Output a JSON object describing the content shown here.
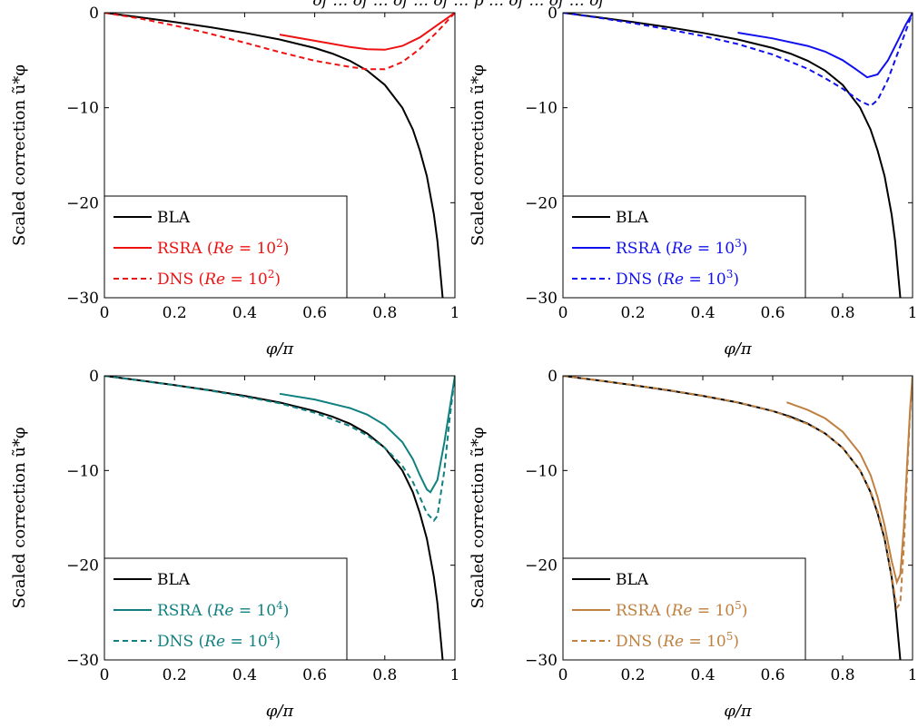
{
  "figure": {
    "caption_fragment": "of … of … of … of … p … of … of … of"
  },
  "chart_data": [
    {
      "type": "line",
      "xlabel": "φ/π",
      "ylabel": "Scaled correction ũ*φ",
      "xlim": [
        0,
        1
      ],
      "ylim": [
        -30,
        0
      ],
      "xticks": [
        "0",
        "0.2",
        "0.4",
        "0.6",
        "0.8",
        "1"
      ],
      "yticks": [
        "0",
        "−10",
        "−20",
        "−30"
      ],
      "grid": false,
      "legend_position": "bottom-left",
      "series": [
        {
          "name": "BLA",
          "color": "#000000",
          "dash": "solid",
          "x": [
            0,
            0.1,
            0.2,
            0.3,
            0.4,
            0.5,
            0.6,
            0.65,
            0.7,
            0.75,
            0.8,
            0.85,
            0.88,
            0.9,
            0.92,
            0.94,
            0.95,
            0.96,
            0.965
          ],
          "y": [
            0,
            -0.48,
            -0.98,
            -1.52,
            -2.12,
            -2.82,
            -3.72,
            -4.3,
            -5.05,
            -6.1,
            -7.6,
            -10.0,
            -12.3,
            -14.5,
            -17.2,
            -21.2,
            -24.0,
            -28.0,
            -30.0
          ]
        },
        {
          "name": "RSRA (Re = 10²)",
          "label": "RSRA",
          "re_exp": "2",
          "color": "#ee1111",
          "dash": "solid",
          "x": [
            0.5,
            0.6,
            0.7,
            0.75,
            0.8,
            0.85,
            0.9,
            0.95,
            1.0
          ],
          "y": [
            -2.3,
            -2.95,
            -3.6,
            -3.85,
            -3.9,
            -3.5,
            -2.6,
            -1.3,
            0
          ]
        },
        {
          "name": "DNS (Re = 10²)",
          "label": "DNS",
          "re_exp": "2",
          "color": "#ee1111",
          "dash": "dashed",
          "x": [
            0,
            0.1,
            0.2,
            0.3,
            0.4,
            0.5,
            0.6,
            0.7,
            0.75,
            0.8,
            0.85,
            0.9,
            0.95,
            1.0
          ],
          "y": [
            0,
            -0.6,
            -1.35,
            -2.2,
            -3.15,
            -4.15,
            -5.05,
            -5.7,
            -5.95,
            -5.95,
            -5.2,
            -3.8,
            -2.0,
            0
          ]
        }
      ]
    },
    {
      "type": "line",
      "xlabel": "φ/π",
      "ylabel": "Scaled correction ũ*φ",
      "xlim": [
        0,
        1
      ],
      "ylim": [
        -30,
        0
      ],
      "xticks": [
        "0",
        "0.2",
        "0.4",
        "0.6",
        "0.8",
        "1"
      ],
      "yticks": [
        "0",
        "−10",
        "−20",
        "−30"
      ],
      "grid": false,
      "legend_position": "bottom-left",
      "series": [
        {
          "name": "BLA",
          "color": "#000000",
          "dash": "solid",
          "x": [
            0,
            0.1,
            0.2,
            0.3,
            0.4,
            0.5,
            0.6,
            0.65,
            0.7,
            0.75,
            0.8,
            0.85,
            0.88,
            0.9,
            0.92,
            0.94,
            0.95,
            0.96,
            0.965
          ],
          "y": [
            0,
            -0.48,
            -0.98,
            -1.52,
            -2.12,
            -2.82,
            -3.72,
            -4.3,
            -5.05,
            -6.1,
            -7.6,
            -10.0,
            -12.3,
            -14.5,
            -17.2,
            -21.2,
            -24.0,
            -28.0,
            -30.0
          ]
        },
        {
          "name": "RSRA (Re = 10³)",
          "label": "RSRA",
          "re_exp": "3",
          "color": "#1111ee",
          "dash": "solid",
          "x": [
            0.5,
            0.6,
            0.7,
            0.75,
            0.8,
            0.84,
            0.87,
            0.9,
            0.93,
            0.96,
            0.98,
            1.0
          ],
          "y": [
            -2.1,
            -2.7,
            -3.5,
            -4.1,
            -5.0,
            -6.0,
            -6.8,
            -6.5,
            -5.0,
            -2.8,
            -1.3,
            0
          ]
        },
        {
          "name": "DNS (Re = 10³)",
          "label": "DNS",
          "re_exp": "3",
          "color": "#1111ee",
          "dash": "dashed",
          "x": [
            0,
            0.1,
            0.2,
            0.3,
            0.4,
            0.5,
            0.6,
            0.7,
            0.75,
            0.8,
            0.85,
            0.88,
            0.9,
            0.93,
            0.96,
            0.98,
            1.0
          ],
          "y": [
            0,
            -0.52,
            -1.1,
            -1.75,
            -2.45,
            -3.3,
            -4.4,
            -5.9,
            -6.9,
            -8.0,
            -9.3,
            -9.8,
            -9.2,
            -7.0,
            -4.0,
            -2.0,
            0
          ]
        }
      ]
    },
    {
      "type": "line",
      "xlabel": "φ/π",
      "ylabel": "Scaled correction ũ*φ",
      "xlim": [
        0,
        1
      ],
      "ylim": [
        -30,
        0
      ],
      "xticks": [
        "0",
        "0.2",
        "0.4",
        "0.6",
        "0.8",
        "1"
      ],
      "yticks": [
        "0",
        "−10",
        "−20",
        "−30"
      ],
      "grid": false,
      "legend_position": "bottom-left",
      "series": [
        {
          "name": "BLA",
          "color": "#000000",
          "dash": "solid",
          "x": [
            0,
            0.1,
            0.2,
            0.3,
            0.4,
            0.5,
            0.6,
            0.65,
            0.7,
            0.75,
            0.8,
            0.85,
            0.88,
            0.9,
            0.92,
            0.94,
            0.95,
            0.96,
            0.965
          ],
          "y": [
            0,
            -0.48,
            -0.98,
            -1.52,
            -2.12,
            -2.82,
            -3.72,
            -4.3,
            -5.05,
            -6.1,
            -7.6,
            -10.0,
            -12.3,
            -14.5,
            -17.2,
            -21.2,
            -24.0,
            -28.0,
            -30.0
          ]
        },
        {
          "name": "RSRA (Re = 10⁴)",
          "label": "RSRA",
          "re_exp": "4",
          "color": "#108080",
          "dash": "solid",
          "x": [
            0.5,
            0.6,
            0.7,
            0.75,
            0.8,
            0.85,
            0.88,
            0.9,
            0.92,
            0.93,
            0.95,
            0.97,
            0.985,
            1.0
          ],
          "y": [
            -1.9,
            -2.5,
            -3.4,
            -4.1,
            -5.2,
            -7.0,
            -8.8,
            -10.5,
            -12.0,
            -12.3,
            -11.0,
            -7.0,
            -3.5,
            0
          ]
        },
        {
          "name": "DNS (Re = 10⁴)",
          "label": "DNS",
          "re_exp": "4",
          "color": "#108080",
          "dash": "dashed",
          "x": [
            0,
            0.1,
            0.2,
            0.3,
            0.4,
            0.5,
            0.6,
            0.7,
            0.75,
            0.8,
            0.85,
            0.88,
            0.9,
            0.92,
            0.94,
            0.95,
            0.97,
            0.985,
            1.0
          ],
          "y": [
            0,
            -0.5,
            -1.0,
            -1.55,
            -2.2,
            -2.9,
            -3.9,
            -5.3,
            -6.3,
            -7.6,
            -9.5,
            -11.2,
            -12.8,
            -14.5,
            -15.3,
            -14.8,
            -10.0,
            -4.5,
            0
          ]
        }
      ]
    },
    {
      "type": "line",
      "xlabel": "φ/π",
      "ylabel": "Scaled correction ũ*φ",
      "xlim": [
        0,
        1
      ],
      "ylim": [
        -30,
        0
      ],
      "xticks": [
        "0",
        "0.2",
        "0.4",
        "0.6",
        "0.8",
        "1"
      ],
      "yticks": [
        "0",
        "−10",
        "−20",
        "−30"
      ],
      "grid": false,
      "legend_position": "bottom-left",
      "series": [
        {
          "name": "BLA",
          "color": "#000000",
          "dash": "solid",
          "x": [
            0,
            0.1,
            0.2,
            0.3,
            0.4,
            0.5,
            0.6,
            0.65,
            0.7,
            0.75,
            0.8,
            0.85,
            0.88,
            0.9,
            0.92,
            0.94,
            0.95,
            0.96,
            0.965
          ],
          "y": [
            0,
            -0.48,
            -0.98,
            -1.52,
            -2.12,
            -2.82,
            -3.72,
            -4.3,
            -5.05,
            -6.1,
            -7.6,
            -10.0,
            -12.3,
            -14.5,
            -17.2,
            -21.2,
            -24.0,
            -28.0,
            -30.0
          ]
        },
        {
          "name": "RSRA (Re = 10⁵)",
          "label": "RSRA",
          "re_exp": "5",
          "color": "#bf8040",
          "dash": "solid",
          "x": [
            0.64,
            0.7,
            0.75,
            0.8,
            0.85,
            0.88,
            0.9,
            0.92,
            0.94,
            0.955,
            0.965,
            0.975,
            0.985,
            0.993,
            1.0
          ],
          "y": [
            -2.8,
            -3.6,
            -4.5,
            -5.9,
            -8.2,
            -10.5,
            -12.8,
            -15.8,
            -19.5,
            -21.8,
            -21.0,
            -16.0,
            -9.0,
            -3.5,
            0
          ]
        },
        {
          "name": "DNS (Re = 10⁵)",
          "label": "DNS",
          "re_exp": "5",
          "color": "#bf8040",
          "dash": "dashed",
          "x": [
            0,
            0.1,
            0.2,
            0.3,
            0.4,
            0.5,
            0.6,
            0.7,
            0.75,
            0.8,
            0.85,
            0.88,
            0.9,
            0.92,
            0.94,
            0.955,
            0.965,
            0.975,
            0.985,
            0.993,
            1.0
          ],
          "y": [
            0,
            -0.47,
            -0.97,
            -1.5,
            -2.1,
            -2.8,
            -3.7,
            -5.1,
            -6.1,
            -7.6,
            -10.0,
            -12.2,
            -14.3,
            -17.0,
            -21.0,
            -24.5,
            -24.0,
            -18.0,
            -10.0,
            -4.0,
            0
          ]
        }
      ]
    }
  ]
}
